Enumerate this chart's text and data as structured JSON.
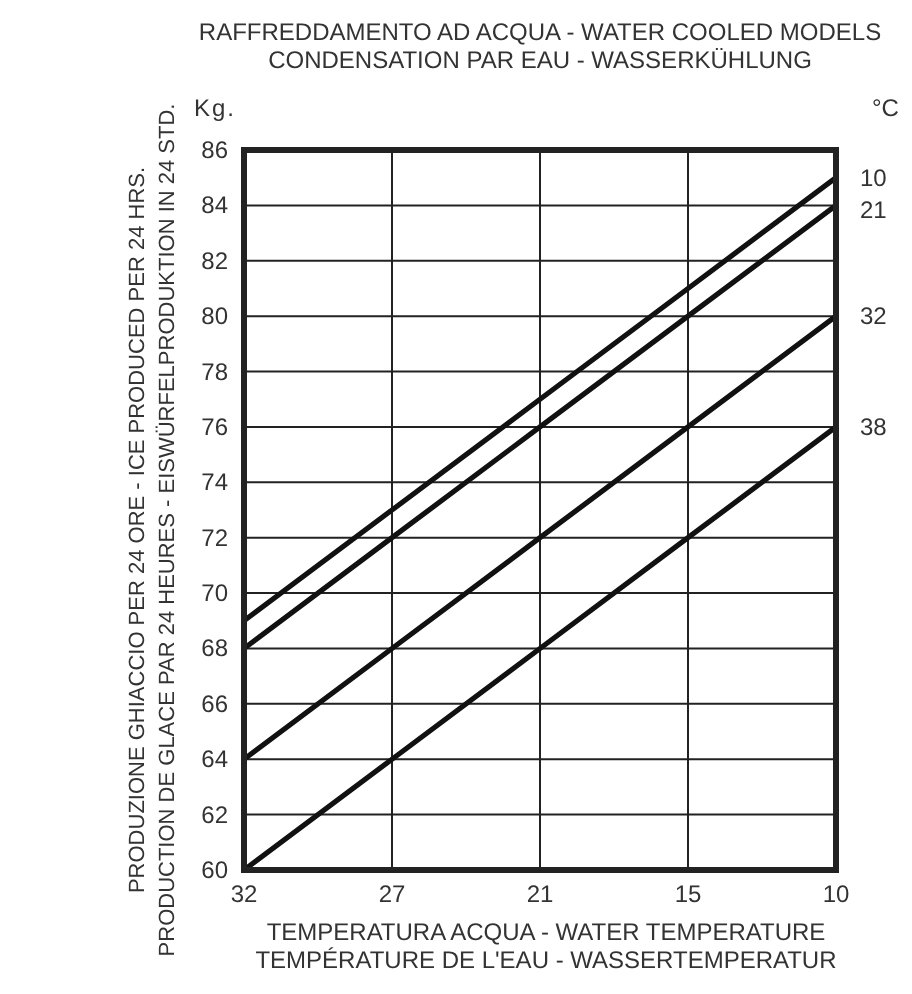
{
  "chart_data": {
    "type": "line",
    "title": "RAFFREDDAMENTO AD ACQUA - WATER COOLED MODELS\nCONDENSATION PAR EAU - WASSERKÜHLUNG",
    "xlabel": "TEMPERATURA ACQUA - WATER TEMPERATURE\nTEMPÉRATURE DE L'EAU - WASSERTEMPERATUR",
    "ylabel": "PRODUZIONE GHIACCIO PER 24 ORE - ICE PRODUCED PER 24 HRS.\nPRODUCTION DE GLACE PAR 24 HEURES - EISWÜRFELPRODUKTION IN 24 STD.",
    "legend_title": "°C",
    "annotations": [
      "Kg."
    ],
    "categories": [
      "32",
      "27",
      "21",
      "15",
      "10"
    ],
    "series": [
      {
        "name": "10",
        "color": "#111111",
        "values": [
          69,
          73,
          77,
          81,
          85
        ]
      },
      {
        "name": "21",
        "color": "#111111",
        "values": [
          68,
          72,
          76,
          80,
          84
        ]
      },
      {
        "name": "32",
        "color": "#111111",
        "values": [
          64,
          68,
          72,
          76,
          80
        ]
      },
      {
        "name": "38",
        "color": "#111111",
        "values": [
          60,
          64,
          68,
          72,
          76
        ]
      }
    ],
    "ylim": [
      60,
      86
    ],
    "yticks": [
      60,
      62,
      64,
      66,
      68,
      70,
      72,
      74,
      76,
      78,
      80,
      82,
      84,
      86
    ],
    "grid": true,
    "legend": "right",
    "marker": "none",
    "line_style": "solid"
  }
}
